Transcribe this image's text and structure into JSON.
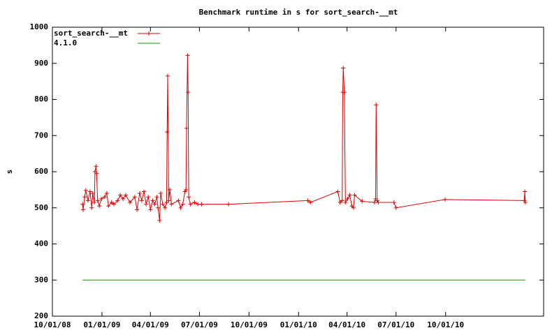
{
  "chart_data": {
    "type": "line",
    "title": "Benchmark runtime in s for sort_search-__mt",
    "y_label": "s",
    "xlim": [
      "2008-10-01",
      "2011-04-01"
    ],
    "xticks": [
      {
        "value": "2008-10-01",
        "label": "10/01/08"
      },
      {
        "value": "2009-01-01",
        "label": "01/01/09"
      },
      {
        "value": "2009-04-01",
        "label": "04/01/09"
      },
      {
        "value": "2009-07-01",
        "label": "07/01/09"
      },
      {
        "value": "2009-10-01",
        "label": "10/01/09"
      },
      {
        "value": "2010-01-01",
        "label": "01/01/10"
      },
      {
        "value": "2010-04-01",
        "label": "04/01/10"
      },
      {
        "value": "2010-07-01",
        "label": "07/01/10"
      },
      {
        "value": "2010-10-01",
        "label": "10/01/10"
      }
    ],
    "ylim": [
      200,
      1000
    ],
    "yticks": [
      200,
      300,
      400,
      500,
      600,
      700,
      800,
      900,
      1000
    ],
    "legend": "top-left",
    "series": [
      {
        "name": "sort_search-__mt",
        "color": "#dd0000",
        "marker": "plus",
        "x": [
          "2008-11-26",
          "2008-11-27",
          "2008-11-30",
          "2008-12-02",
          "2008-12-06",
          "2008-12-10",
          "2008-12-13",
          "2008-12-15",
          "2008-12-18",
          "2008-12-19",
          "2008-12-21",
          "2008-12-22",
          "2008-12-24",
          "2008-12-27",
          "2008-12-31",
          "2009-01-06",
          "2009-01-10",
          "2009-01-13",
          "2009-01-19",
          "2009-01-23",
          "2009-01-30",
          "2009-02-04",
          "2009-02-09",
          "2009-02-14",
          "2009-02-22",
          "2009-03-03",
          "2009-03-07",
          "2009-03-12",
          "2009-03-16",
          "2009-03-20",
          "2009-03-24",
          "2009-03-28",
          "2009-04-01",
          "2009-04-05",
          "2009-04-09",
          "2009-04-13",
          "2009-04-15",
          "2009-04-18",
          "2009-04-20",
          "2009-04-24",
          "2009-04-28",
          "2009-05-01",
          "2009-05-02",
          "2009-05-03",
          "2009-05-05",
          "2009-05-07",
          "2009-05-10",
          "2009-05-23",
          "2009-05-27",
          "2009-05-31",
          "2009-06-04",
          "2009-06-06",
          "2009-06-07",
          "2009-06-09",
          "2009-06-10",
          "2009-06-11",
          "2009-06-14",
          "2009-06-22",
          "2009-06-28",
          "2009-07-05",
          "2009-08-24",
          "2010-01-18",
          "2010-01-23",
          "2010-03-15",
          "2010-03-19",
          "2010-03-23",
          "2010-03-24",
          "2010-03-25",
          "2010-03-27",
          "2010-03-29",
          "2010-04-02",
          "2010-04-06",
          "2010-04-10",
          "2010-04-13",
          "2010-04-15",
          "2010-04-29",
          "2010-05-22",
          "2010-05-24",
          "2010-05-25",
          "2010-05-27",
          "2010-05-29",
          "2010-06-27",
          "2010-07-01",
          "2010-09-30",
          "2011-02-24",
          "2011-02-25",
          "2011-02-26"
        ],
        "values": [
          510,
          495,
          530,
          548,
          520,
          545,
          500,
          540,
          515,
          600,
          615,
          595,
          520,
          505,
          525,
          530,
          540,
          505,
          515,
          510,
          520,
          535,
          525,
          535,
          515,
          530,
          495,
          540,
          520,
          545,
          510,
          530,
          495,
          520,
          510,
          530,
          500,
          465,
          540,
          510,
          500,
          515,
          710,
          865,
          520,
          550,
          510,
          520,
          500,
          510,
          545,
          550,
          720,
          922,
          820,
          530,
          510,
          515,
          510,
          510,
          510,
          520,
          515,
          545,
          515,
          520,
          820,
          887,
          820,
          515,
          525,
          535,
          505,
          500,
          535,
          518,
          515,
          525,
          785,
          520,
          515,
          515,
          500,
          523,
          520,
          545,
          515
        ]
      },
      {
        "name": "4.1.0",
        "color": "#00a000",
        "x": [
          "2008-11-26",
          "2011-02-26"
        ],
        "values": [
          300,
          300
        ]
      }
    ]
  }
}
